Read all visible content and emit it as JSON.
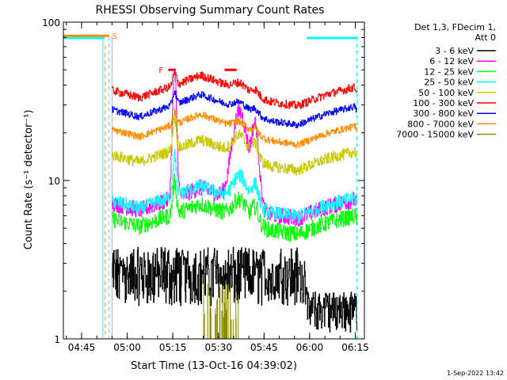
{
  "chart_data": {
    "type": "line",
    "title": "RHESSI Observing Summary Count Rates",
    "xlabel": "Start Time (13-Oct-16 04:39:02)",
    "ylabel": "Count Rate (s⁻¹ detector⁻¹)",
    "x_unit": "minutes after 04:39:02",
    "xlim": [
      0,
      99
    ],
    "ylim": [
      1,
      100
    ],
    "yscale": "log",
    "x_ticks": [
      {
        "label": "04:45",
        "t": 6
      },
      {
        "label": "05:00",
        "t": 21
      },
      {
        "label": "05:15",
        "t": 36
      },
      {
        "label": "05:30",
        "t": 51
      },
      {
        "label": "05:45",
        "t": 66
      },
      {
        "label": "06:00",
        "t": 81
      },
      {
        "label": "06:15",
        "t": 96
      }
    ],
    "y_ticks": [
      {
        "label": "1",
        "v": 1
      },
      {
        "label": "10",
        "v": 10
      },
      {
        "label": "100",
        "v": 100
      }
    ],
    "legend_header": [
      "Det 1,3, FDecim 1,",
      "Att 0"
    ],
    "legend_position": "right",
    "timestamp": "1-Sep-2022 13:42",
    "series": [
      {
        "name": "3 - 6 keV",
        "color": "#000000",
        "base": 2.6,
        "noise": 0.35,
        "steps": [
          1.9,
          2.6,
          3.3
        ],
        "flare": 0
      },
      {
        "name": "6 - 12 keV",
        "color": "#ff00ff",
        "base": 7.2,
        "noise": 0.12,
        "flare": 5.0
      },
      {
        "name": "12 - 25 keV",
        "color": "#00ff00",
        "base": 5.7,
        "noise": 0.12,
        "flare": 0.6
      },
      {
        "name": "25 - 50 keV",
        "color": "#00ffff",
        "base": 7.4,
        "noise": 0.1,
        "flare": 0.8
      },
      {
        "name": "50 - 100 keV",
        "color": "#c8c800",
        "base": 14.5,
        "noise": 0.08,
        "flare": 0.6
      },
      {
        "name": "100 - 300 keV",
        "color": "#ff0000",
        "base": 37,
        "noise": 0.06,
        "flare": 0.2
      },
      {
        "name": "300 - 800 keV",
        "color": "#0000ff",
        "base": 28,
        "noise": 0.05,
        "flare": 0.2
      },
      {
        "name": "800 - 7000 keV",
        "color": "#ff8c00",
        "base": 21,
        "noise": 0.05,
        "flare": 0.2
      },
      {
        "name": "7000 - 15000 keV",
        "color": "#8b8b00",
        "base": 1.0,
        "noise": 0.0,
        "flare": 0
      }
    ],
    "flags": [
      {
        "label": "S",
        "color": "#ff8c00",
        "t_start": 0,
        "t_end": 15,
        "v": 82
      },
      {
        "label": "F",
        "color": "#ff0000",
        "t_start": 34.5,
        "t_end": 37,
        "v": 50
      },
      {
        "label": "",
        "color": "#ff0000",
        "t_start": 53,
        "t_end": 57,
        "v": 50
      }
    ],
    "night_intervals": [
      {
        "t_start": -1,
        "t_end": 13.5
      },
      {
        "t_start": 80,
        "t_end": 96.5
      }
    ],
    "saa_lines": [
      13,
      15,
      16,
      96.5
    ],
    "data_start": 16,
    "data_end": 96.5,
    "background_shape": [
      {
        "t": 16,
        "f": 1.0
      },
      {
        "t": 25,
        "f": 0.9
      },
      {
        "t": 38,
        "f": 1.1
      },
      {
        "t": 45,
        "f": 1.25
      },
      {
        "t": 55,
        "f": 1.05
      },
      {
        "t": 68,
        "f": 0.85
      },
      {
        "t": 77,
        "f": 0.8
      },
      {
        "t": 87,
        "f": 0.95
      },
      {
        "t": 96,
        "f": 1.05
      }
    ],
    "flare_peaks": [
      {
        "t": 36.5,
        "w": 0.8,
        "a": 1.0
      },
      {
        "t": 58,
        "w": 3.0,
        "a": 0.55
      },
      {
        "t": 63,
        "w": 1.5,
        "a": 0.45
      }
    ]
  }
}
